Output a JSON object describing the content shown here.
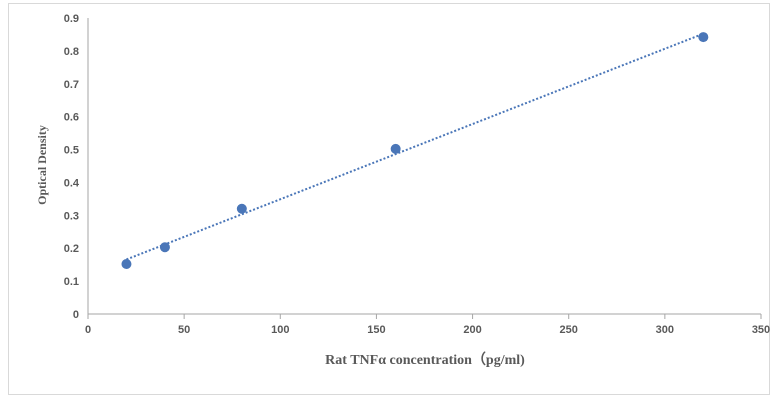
{
  "chart_data": {
    "type": "scatter",
    "title": "",
    "xlabel": "Rat TNFα concentration（pg/ml)",
    "ylabel": "Optical Density",
    "xlim": [
      0,
      350
    ],
    "ylim": [
      0,
      0.9
    ],
    "xticks": [
      0,
      50,
      100,
      150,
      200,
      250,
      300,
      350
    ],
    "yticks": [
      0,
      0.1,
      0.2,
      0.3,
      0.4,
      0.5,
      0.6,
      0.7,
      0.8,
      0.9
    ],
    "grid": false,
    "legend": "none",
    "trendline": "linear-dotted",
    "colors": {
      "marker": "#4a76b8",
      "trendline": "#4a76b8",
      "axis": "#a6a6a6",
      "text": "#595959"
    },
    "series": [
      {
        "x": [
          20,
          40,
          80,
          160,
          320
        ],
        "y": [
          0.152,
          0.203,
          0.32,
          0.502,
          0.842
        ]
      }
    ]
  }
}
